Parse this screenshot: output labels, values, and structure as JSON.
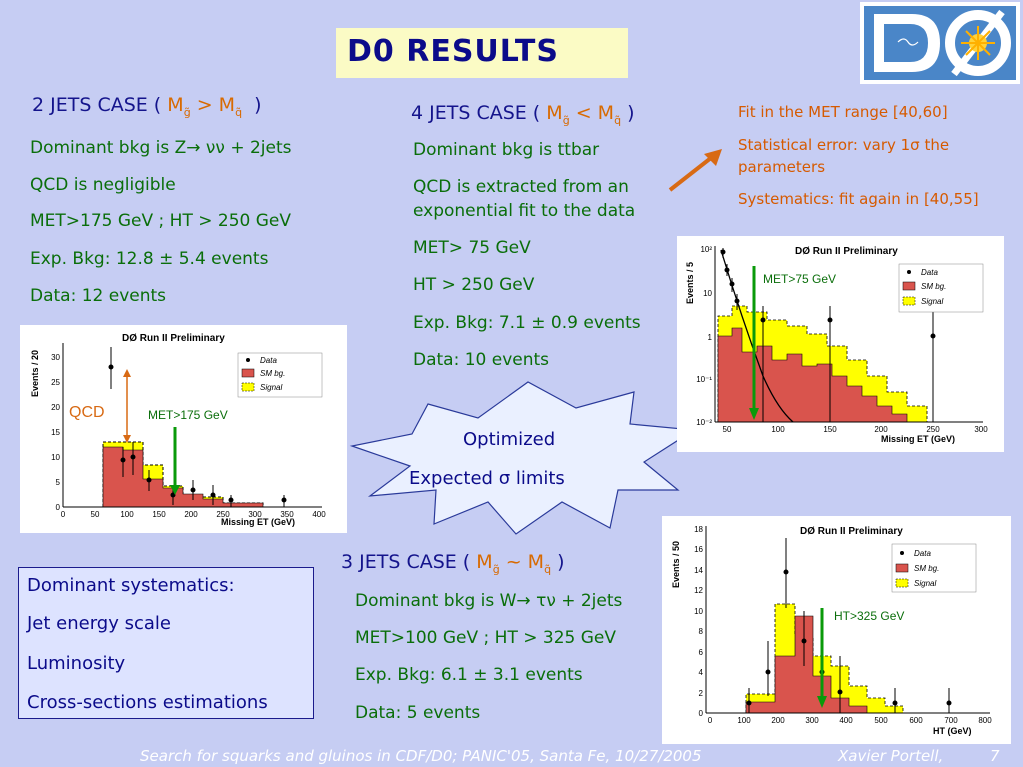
{
  "title": "D0 RESULTS",
  "two_jets": {
    "head_pre": "2 JETS CASE (",
    "head_m1": "M",
    "head_s1": "g̃",
    "head_op": " > ",
    "head_m2": "M",
    "head_s2": "q̃",
    "head_post": ")",
    "lines": [
      "Dominant bkg is Z→ νν + 2jets",
      "QCD is negligible",
      "MET>175 GeV ; HT > 250 GeV",
      "Exp. Bkg: 12.8 ± 5.4 events",
      "Data: 12 events"
    ]
  },
  "four_jets": {
    "head_pre": "4 JETS CASE (",
    "head_m1": "M",
    "head_s1": "g̃",
    "head_op": " < ",
    "head_m2": "M",
    "head_s2": "q̃",
    "head_post": ")",
    "lines": [
      "Dominant bkg is ttbar",
      "QCD is extracted from an",
      "exponential fit to the data",
      "MET> 75 GeV",
      "HT > 250 GeV",
      "Exp. Bkg: 7.1 ± 0.9 events",
      "Data: 10 events"
    ]
  },
  "fit_notes": [
    "Fit in the MET range [40,60]",
    "Statistical error: vary 1σ the",
    "parameters",
    "Systematics: fit again in [40,55]"
  ],
  "three_jets": {
    "head_pre": "3 JETS CASE (",
    "head_m1": "M",
    "head_s1": "g̃",
    "head_op": " ~ ",
    "head_m2": "M",
    "head_s2": "q̃",
    "head_post": ")",
    "lines": [
      "Dominant bkg is W→ τν + 2jets",
      "MET>100 GeV ; HT > 325 GeV",
      "Exp. Bkg: 6.1 ± 3.1 events",
      "Data: 5 events"
    ]
  },
  "burst": {
    "line1": "Optimized",
    "line2": "Expected σ limits"
  },
  "systematics": {
    "header": "Dominant systematics:",
    "items": [
      "Jet energy scale",
      "Luminosity",
      "Cross-sections estimations"
    ]
  },
  "footer": {
    "text": "Search for squarks and gluinos in CDF/D0; PANIC'05, Santa Fe, 10/27/2005",
    "author": "Xavier Portell,",
    "page": "7"
  },
  "colors": {
    "title_bg": "#fbfbc5",
    "heading": "#14148c",
    "green_text": "#0a6e0a",
    "orange_text": "#d65a00",
    "sm_bg": "#d9544d",
    "signal": "#ffff00"
  },
  "plots": {
    "met2": {
      "title": "DØ Run II Preliminary",
      "ylabel": "Events / 20",
      "xlabel": "Missing ET (GeV)",
      "legend": [
        "Data",
        "SM bg.",
        "Signal"
      ],
      "qcd_label": "QCD",
      "cut_label": "MET>175 GeV",
      "xticks": [
        "0",
        "50",
        "100",
        "150",
        "200",
        "250",
        "300",
        "350",
        "400"
      ],
      "yticks": [
        "0",
        "5",
        "10",
        "15",
        "20",
        "25",
        "30"
      ]
    },
    "met4": {
      "title": "DØ Run II Preliminary",
      "ylabel": "Events / 5",
      "xlabel": "Missing ET (GeV)",
      "legend": [
        "Data",
        "SM bg.",
        "Signal"
      ],
      "cut_label": "MET>75 GeV",
      "xticks": [
        "50",
        "100",
        "150",
        "200",
        "250",
        "300"
      ],
      "yticks": [
        "10²",
        "10",
        "1",
        "10⁻¹",
        "10⁻²"
      ]
    },
    "ht3": {
      "title": "DØ Run II Preliminary",
      "ylabel": "Events / 50",
      "xlabel": "HT (GeV)",
      "legend": [
        "Data",
        "SM bg.",
        "Signal"
      ],
      "cut_label": "HT>325 GeV",
      "xticks": [
        "0",
        "100",
        "200",
        "300",
        "400",
        "500",
        "600",
        "700",
        "800"
      ],
      "yticks": [
        "0",
        "2",
        "4",
        "6",
        "8",
        "10",
        "12",
        "14",
        "16",
        "18"
      ]
    }
  }
}
